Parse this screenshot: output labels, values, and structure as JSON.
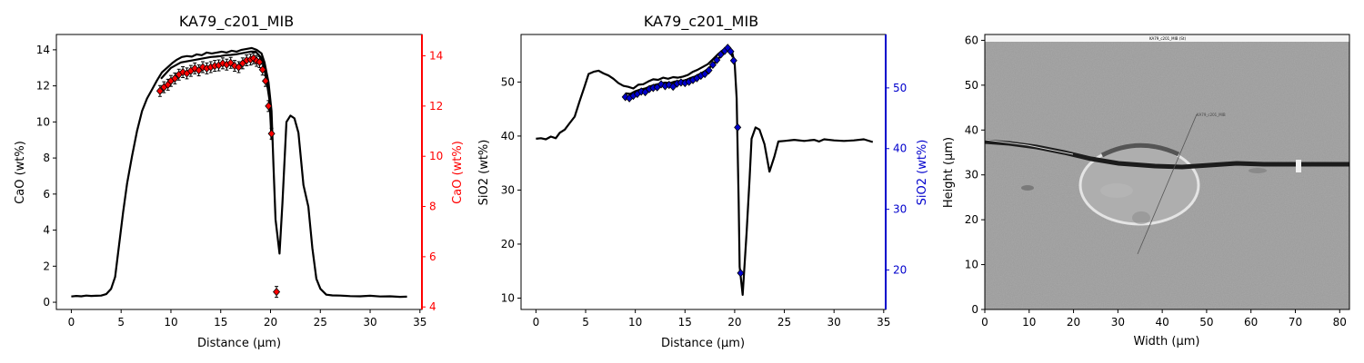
{
  "chart_data": [
    {
      "type": "line",
      "title": "KA79_c201_MIB",
      "xlabel": "Distance (µm)",
      "ylabel": "CaO (wt%)",
      "ylabel_right": "CaO (wt%)",
      "xlim": [
        -1.5,
        35.2
      ],
      "ylim": [
        -0.4,
        14.85
      ],
      "ylim_right": [
        3.9,
        14.85
      ],
      "xticks": [
        0,
        5,
        10,
        15,
        20,
        25,
        30,
        35
      ],
      "yticks": [
        0,
        2,
        4,
        6,
        8,
        10,
        12,
        14
      ],
      "yticks_right": [
        4,
        6,
        8,
        10,
        12,
        14
      ],
      "right_axis_color": "#ff0000",
      "series": [
        {
          "axis": "left",
          "color": "#000000",
          "points": [
            [
              0,
              0.32
            ],
            [
              0.5,
              0.35
            ],
            [
              1,
              0.33
            ],
            [
              1.5,
              0.37
            ],
            [
              2,
              0.35
            ],
            [
              2.5,
              0.36
            ],
            [
              3,
              0.37
            ],
            [
              3.5,
              0.45
            ],
            [
              4,
              0.75
            ],
            [
              4.4,
              1.4
            ],
            [
              4.8,
              3.2
            ],
            [
              5.2,
              5.0
            ],
            [
              5.6,
              6.6
            ],
            [
              6.1,
              8.1
            ],
            [
              6.6,
              9.5
            ],
            [
              7.1,
              10.6
            ],
            [
              7.6,
              11.3
            ],
            [
              8.1,
              11.8
            ],
            [
              8.6,
              12.3
            ],
            [
              9.1,
              12.75
            ],
            [
              9.6,
              13.0
            ],
            [
              10.1,
              13.25
            ],
            [
              10.6,
              13.45
            ],
            [
              11.1,
              13.6
            ],
            [
              11.6,
              13.65
            ],
            [
              12.1,
              13.62
            ],
            [
              12.6,
              13.75
            ],
            [
              13.1,
              13.7
            ],
            [
              13.6,
              13.85
            ],
            [
              14.1,
              13.8
            ],
            [
              14.6,
              13.85
            ],
            [
              15.1,
              13.9
            ],
            [
              15.6,
              13.85
            ],
            [
              16.1,
              13.95
            ],
            [
              16.6,
              13.9
            ],
            [
              17.1,
              14.0
            ],
            [
              17.6,
              14.05
            ],
            [
              18.1,
              14.1
            ],
            [
              18.6,
              14.0
            ],
            [
              19.1,
              13.8
            ],
            [
              19.4,
              13.3
            ],
            [
              19.8,
              12.2
            ],
            [
              20.1,
              10.6
            ],
            [
              20.3,
              7.5
            ],
            [
              20.5,
              4.6
            ],
            [
              20.9,
              2.7
            ],
            [
              21.2,
              5.5
            ],
            [
              21.6,
              10.0
            ],
            [
              22.0,
              10.35
            ],
            [
              22.4,
              10.2
            ],
            [
              22.8,
              9.4
            ],
            [
              23.3,
              6.5
            ],
            [
              23.8,
              5.3
            ],
            [
              24.2,
              3.0
            ],
            [
              24.6,
              1.3
            ],
            [
              25.0,
              0.75
            ],
            [
              25.6,
              0.42
            ],
            [
              26.2,
              0.38
            ],
            [
              27.0,
              0.37
            ],
            [
              28,
              0.34
            ],
            [
              29,
              0.33
            ],
            [
              30,
              0.36
            ],
            [
              31,
              0.32
            ],
            [
              32,
              0.33
            ],
            [
              33,
              0.3
            ],
            [
              33.7,
              0.31
            ]
          ]
        },
        {
          "axis": "left",
          "color": "#000000",
          "points": [
            [
              9.0,
              12.4
            ],
            [
              9.5,
              12.7
            ],
            [
              10.0,
              13.0
            ],
            [
              10.5,
              13.15
            ],
            [
              11.0,
              13.3
            ],
            [
              11.5,
              13.35
            ],
            [
              12.0,
              13.4
            ],
            [
              12.5,
              13.45
            ],
            [
              13.0,
              13.5
            ],
            [
              13.5,
              13.55
            ],
            [
              14.0,
              13.6
            ],
            [
              14.5,
              13.62
            ],
            [
              15.0,
              13.65
            ],
            [
              15.5,
              13.7
            ],
            [
              16.0,
              13.72
            ],
            [
              16.5,
              13.75
            ],
            [
              17.0,
              13.8
            ],
            [
              17.5,
              13.85
            ],
            [
              18.0,
              13.9
            ],
            [
              18.5,
              13.9
            ],
            [
              19.0,
              13.6
            ],
            [
              19.3,
              13.2
            ],
            [
              19.6,
              12.3
            ],
            [
              19.9,
              11.2
            ],
            [
              20.1,
              9.0
            ]
          ]
        },
        {
          "axis": "right",
          "color": "#ff0000",
          "marker": "diamond",
          "errorbars": true,
          "points": [
            [
              8.9,
              12.6
            ],
            [
              9.3,
              12.75
            ],
            [
              9.7,
              12.85
            ],
            [
              10.0,
              13.0
            ],
            [
              10.4,
              13.1
            ],
            [
              10.8,
              13.25
            ],
            [
              11.2,
              13.35
            ],
            [
              11.6,
              13.3
            ],
            [
              12.0,
              13.4
            ],
            [
              12.4,
              13.5
            ],
            [
              12.8,
              13.42
            ],
            [
              13.2,
              13.55
            ],
            [
              13.6,
              13.5
            ],
            [
              14.0,
              13.55
            ],
            [
              14.4,
              13.6
            ],
            [
              14.8,
              13.62
            ],
            [
              15.2,
              13.7
            ],
            [
              15.6,
              13.65
            ],
            [
              16.0,
              13.72
            ],
            [
              16.4,
              13.6
            ],
            [
              16.8,
              13.55
            ],
            [
              17.2,
              13.7
            ],
            [
              17.6,
              13.82
            ],
            [
              18.0,
              13.85
            ],
            [
              18.3,
              13.9
            ],
            [
              18.6,
              13.8
            ],
            [
              18.9,
              13.75
            ],
            [
              19.2,
              13.45
            ],
            [
              19.5,
              13.0
            ],
            [
              19.8,
              12.0
            ],
            [
              20.1,
              10.9
            ],
            [
              20.6,
              4.6
            ]
          ]
        }
      ]
    },
    {
      "type": "line",
      "title": "KA79_c201_MIB",
      "xlabel": "Distance (µm)",
      "ylabel": "SiO2 (wt%)",
      "ylabel_right": "SiO2 (wt%)",
      "xlim": [
        -1.5,
        35.2
      ],
      "ylim": [
        7.9,
        58.8
      ],
      "ylim_right": [
        13.5,
        58.8
      ],
      "xticks": [
        0,
        5,
        10,
        15,
        20,
        25,
        30,
        35
      ],
      "yticks": [
        10,
        20,
        30,
        40,
        50
      ],
      "yticks_right": [
        20,
        30,
        40,
        50
      ],
      "right_axis_color": "#0000cc",
      "series": [
        {
          "axis": "left",
          "color": "#000000",
          "points": [
            [
              0,
              39.5
            ],
            [
              0.5,
              39.6
            ],
            [
              1,
              39.4
            ],
            [
              1.5,
              39.9
            ],
            [
              2,
              39.6
            ],
            [
              2.4,
              40.6
            ],
            [
              2.9,
              41.2
            ],
            [
              3.4,
              42.4
            ],
            [
              3.9,
              43.6
            ],
            [
              4.4,
              46.5
            ],
            [
              4.9,
              49.2
            ],
            [
              5.3,
              51.5
            ],
            [
              5.8,
              51.9
            ],
            [
              6.3,
              52.1
            ],
            [
              6.8,
              51.6
            ],
            [
              7.3,
              51.2
            ],
            [
              7.8,
              50.6
            ],
            [
              8.3,
              49.8
            ],
            [
              8.8,
              49.3
            ],
            [
              9.3,
              49.1
            ],
            [
              9.8,
              48.8
            ],
            [
              10.3,
              49.5
            ],
            [
              10.8,
              49.6
            ],
            [
              11.3,
              50.1
            ],
            [
              11.8,
              50.5
            ],
            [
              12.3,
              50.4
            ],
            [
              12.8,
              50.8
            ],
            [
              13.3,
              50.6
            ],
            [
              13.8,
              50.9
            ],
            [
              14.3,
              50.8
            ],
            [
              14.8,
              51.0
            ],
            [
              15.3,
              51.3
            ],
            [
              15.8,
              51.9
            ],
            [
              16.3,
              52.3
            ],
            [
              16.8,
              52.8
            ],
            [
              17.3,
              53.3
            ],
            [
              17.8,
              54.2
            ],
            [
              18.3,
              55.1
            ],
            [
              18.8,
              55.9
            ],
            [
              19.3,
              56.5
            ],
            [
              19.7,
              55.9
            ],
            [
              20.0,
              53.5
            ],
            [
              20.2,
              47.0
            ],
            [
              20.4,
              28.0
            ],
            [
              20.5,
              15.8
            ],
            [
              20.8,
              10.6
            ],
            [
              21.2,
              22.0
            ],
            [
              21.5,
              32.0
            ],
            [
              21.7,
              39.5
            ],
            [
              22.1,
              41.6
            ],
            [
              22.5,
              41.2
            ],
            [
              23.0,
              38.5
            ],
            [
              23.5,
              33.4
            ],
            [
              24.0,
              36.2
            ],
            [
              24.4,
              39.0
            ],
            [
              25,
              39.1
            ],
            [
              26,
              39.3
            ],
            [
              27,
              39.1
            ],
            [
              28,
              39.3
            ],
            [
              28.5,
              39.0
            ],
            [
              29,
              39.4
            ],
            [
              30,
              39.2
            ],
            [
              31,
              39.1
            ],
            [
              32,
              39.2
            ],
            [
              33,
              39.4
            ],
            [
              33.9,
              38.9
            ]
          ]
        },
        {
          "axis": "left",
          "color": "#000000",
          "points": [
            [
              9.0,
              47.9
            ],
            [
              9.5,
              47.8
            ],
            [
              10.0,
              48.3
            ],
            [
              10.5,
              48.6
            ],
            [
              11.0,
              48.8
            ],
            [
              11.5,
              49.2
            ],
            [
              12.0,
              49.5
            ],
            [
              12.5,
              49.7
            ],
            [
              13.0,
              49.9
            ],
            [
              13.5,
              49.8
            ],
            [
              14.0,
              50.1
            ],
            [
              14.5,
              50.2
            ],
            [
              15.0,
              50.3
            ],
            [
              15.5,
              50.7
            ],
            [
              16.0,
              51.0
            ],
            [
              16.5,
              51.5
            ],
            [
              17.0,
              52.0
            ],
            [
              17.5,
              52.7
            ],
            [
              18.0,
              53.6
            ],
            [
              18.5,
              54.6
            ],
            [
              19.0,
              55.7
            ],
            [
              19.5,
              56.1
            ],
            [
              19.8,
              54.6
            ]
          ]
        },
        {
          "axis": "right",
          "color": "#0000cc",
          "marker": "diamond",
          "errorbars": false,
          "points": [
            [
              9.0,
              48.5
            ],
            [
              9.4,
              48.3
            ],
            [
              9.8,
              48.7
            ],
            [
              10.2,
              49.0
            ],
            [
              10.6,
              49.4
            ],
            [
              11.0,
              49.3
            ],
            [
              11.4,
              49.8
            ],
            [
              11.8,
              50.0
            ],
            [
              12.2,
              50.1
            ],
            [
              12.6,
              50.6
            ],
            [
              13.0,
              50.3
            ],
            [
              13.4,
              50.5
            ],
            [
              13.8,
              50.2
            ],
            [
              14.2,
              50.7
            ],
            [
              14.6,
              50.9
            ],
            [
              15.0,
              50.8
            ],
            [
              15.4,
              51.0
            ],
            [
              15.8,
              51.3
            ],
            [
              16.2,
              51.6
            ],
            [
              16.6,
              52.0
            ],
            [
              17.0,
              52.3
            ],
            [
              17.4,
              52.9
            ],
            [
              17.8,
              53.8
            ],
            [
              18.2,
              54.6
            ],
            [
              18.6,
              55.5
            ],
            [
              19.0,
              56.1
            ],
            [
              19.3,
              56.6
            ],
            [
              19.6,
              56.0
            ],
            [
              19.9,
              54.5
            ],
            [
              20.3,
              43.5
            ],
            [
              20.6,
              19.5
            ]
          ]
        }
      ]
    },
    {
      "type": "image",
      "title": "",
      "xlabel": "Width (µm)",
      "ylabel": "Height (µm)",
      "xlim": [
        0,
        82.2
      ],
      "ylim": [
        0,
        61.3
      ],
      "xticks": [
        0,
        10,
        20,
        30,
        40,
        50,
        60,
        70,
        80
      ],
      "yticks": [
        0,
        10,
        20,
        30,
        40,
        50,
        60
      ],
      "image_caption": "KA79_c201_MIB (St)",
      "image_label": "KA79_c201_MIB"
    }
  ]
}
